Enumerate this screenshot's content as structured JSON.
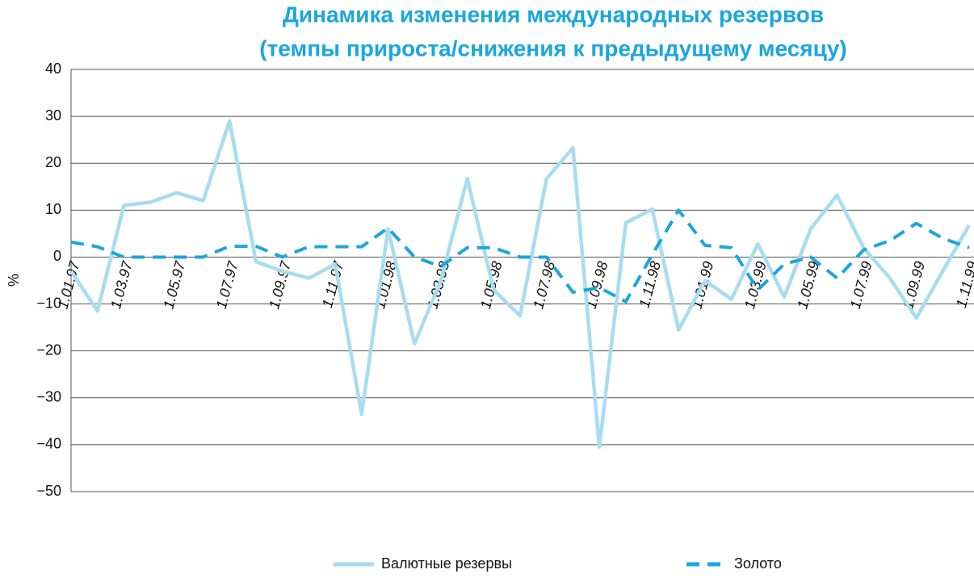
{
  "chart_data": {
    "type": "line",
    "title": [
      "Динамика изменения  международных резервов",
      "(темпы прироста/снижения  к предыдущему месяцу)"
    ],
    "ylabel": "%",
    "categories": [
      "1.01.97",
      null,
      "1.03.97",
      null,
      "1.05.97",
      null,
      "1.07.97",
      null,
      "1.09.97",
      null,
      "1.11.97",
      null,
      "1.01.98",
      null,
      "1.03.98",
      null,
      "1.05.98",
      null,
      "1.07.98",
      null,
      "1.09.98",
      null,
      "1.11.98",
      null,
      "1.01.99",
      null,
      "1.03.99",
      null,
      "1.05.99",
      null,
      "1.07.99",
      null,
      "1.09.99",
      null,
      "1.11.99"
    ],
    "series": [
      {
        "name": "Валютные резервы",
        "color": "#a8dcf0",
        "dash": false,
        "values": [
          -3,
          -11.5,
          11,
          11.7,
          13.7,
          12,
          29,
          -1,
          -3,
          -4.5,
          -1.5,
          -33.5,
          6,
          -18.5,
          -5,
          16.7,
          -7,
          -12.5,
          16.7,
          23.3,
          -40.5,
          7.3,
          10.2,
          -15.5,
          -5,
          -9,
          2.8,
          -8.5,
          6,
          13.2,
          2,
          -4.5,
          -13,
          -3,
          6.8
        ]
      },
      {
        "name": "Золото",
        "color": "#1aa6df",
        "dash": true,
        "values": [
          3.2,
          2.2,
          0,
          0,
          0,
          0,
          2.3,
          2.3,
          0,
          2.2,
          2.2,
          2.2,
          6.2,
          0,
          -2,
          2,
          2,
          0,
          0,
          -7.5,
          -6.5,
          -9.5,
          0.5,
          10,
          2.5,
          2,
          -7,
          -1.5,
          0,
          -4.5,
          1.5,
          3.5,
          7.2,
          4,
          2
        ]
      }
    ],
    "ylim": [
      -50,
      40
    ],
    "yticks": [
      {
        "value": -50,
        "label": "−50"
      },
      {
        "value": -40,
        "label": "−40"
      },
      {
        "value": -30,
        "label": "−30"
      },
      {
        "value": -20,
        "label": "−20"
      },
      {
        "value": -10,
        "label": "−10"
      },
      0,
      10,
      20,
      30,
      40
    ],
    "grid": true,
    "legend": "bottom"
  }
}
